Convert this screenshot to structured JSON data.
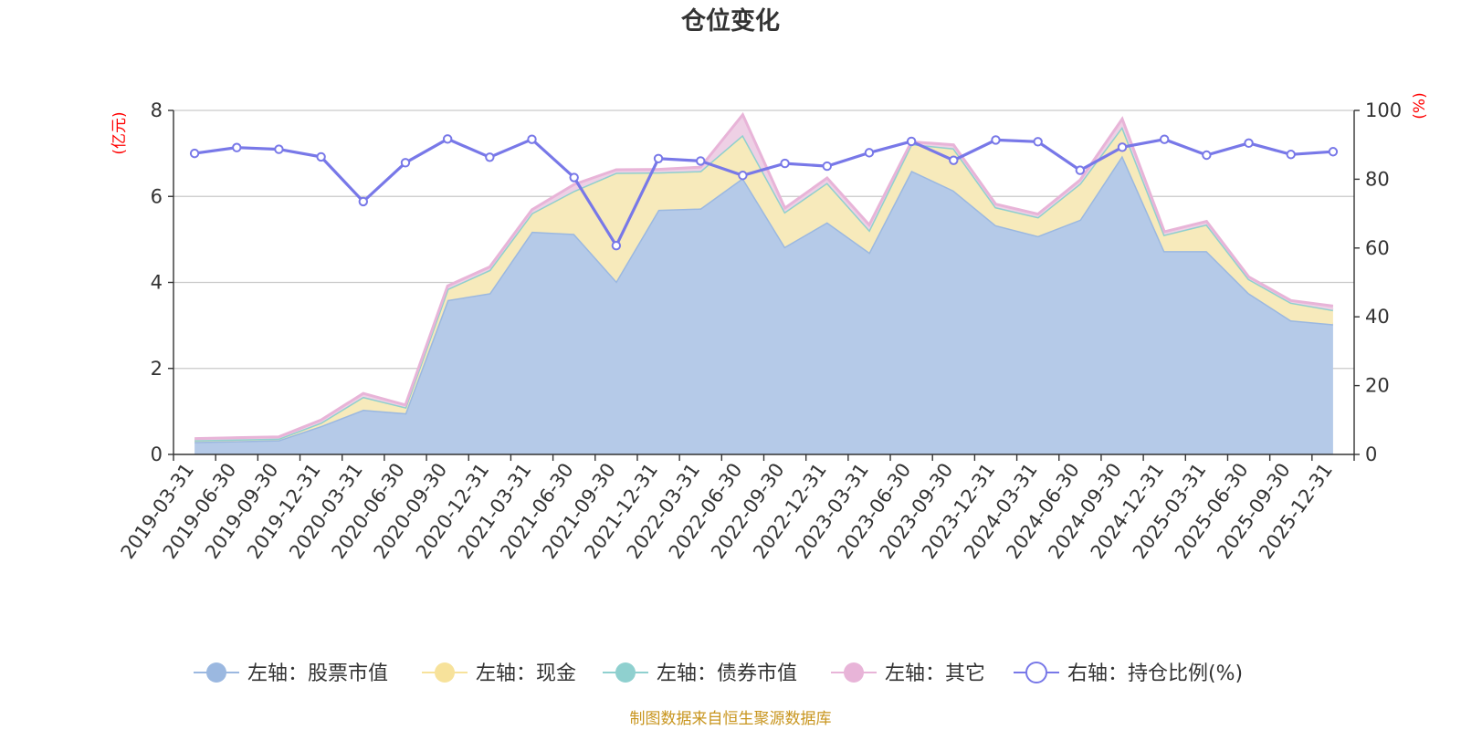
{
  "chart_data": {
    "type": "area",
    "title": "仓位变化",
    "left_unit": "(亿元)",
    "right_unit": "(%)",
    "source": "制图数据来自恒生聚源数据库",
    "ylim_left": [
      0,
      8
    ],
    "ylim_right": [
      0,
      100
    ],
    "left_ticks": [
      "0",
      "2",
      "4",
      "6",
      "8"
    ],
    "right_ticks": [
      "0",
      "20",
      "40",
      "60",
      "80",
      "100"
    ],
    "grid": true,
    "legend_position": "bottom",
    "categories": [
      "2019-03-31",
      "2019-06-30",
      "2019-09-30",
      "2019-12-31",
      "2020-03-31",
      "2020-06-30",
      "2020-09-30",
      "2020-12-31",
      "2021-03-31",
      "2021-06-30",
      "2021-09-30",
      "2021-12-31",
      "2022-03-31",
      "2022-06-30",
      "2022-09-30",
      "2022-12-31",
      "2023-03-31",
      "2023-06-30",
      "2023-09-30",
      "2023-12-31",
      "2024-03-31",
      "2024-06-30",
      "2024-09-30",
      "2024-12-31",
      "2025-03-31",
      "2025-06-30",
      "2025-09-30",
      "2025-12-31"
    ],
    "series": [
      {
        "name": "左轴：股票市值",
        "axis": "left",
        "kind": "stack",
        "color": "#9bb8e0",
        "fill": "#b5cae8",
        "values": [
          0.29,
          0.31,
          0.33,
          0.66,
          1.04,
          0.96,
          3.59,
          3.75,
          5.18,
          5.13,
          4.03,
          5.69,
          5.72,
          6.43,
          4.83,
          5.4,
          4.7,
          6.6,
          6.14,
          5.33,
          5.08,
          5.46,
          6.95,
          4.73,
          4.73,
          3.75,
          3.12,
          3.03
        ]
      },
      {
        "name": "左轴：现金",
        "axis": "left",
        "kind": "stack",
        "color": "#f7e29b",
        "fill": "#f7eabb",
        "values": [
          0.04,
          0.04,
          0.04,
          0.08,
          0.3,
          0.14,
          0.26,
          0.54,
          0.43,
          1.0,
          2.52,
          0.87,
          0.87,
          1.0,
          0.81,
          0.92,
          0.52,
          0.62,
          0.98,
          0.42,
          0.44,
          0.84,
          0.67,
          0.38,
          0.62,
          0.33,
          0.41,
          0.33
        ]
      },
      {
        "name": "左轴：债券市值",
        "axis": "left",
        "kind": "stack",
        "color": "#8fd0cf",
        "fill": "#b7e2e0",
        "values": [
          0,
          0,
          0,
          0,
          0,
          0,
          0,
          0,
          0,
          0,
          0,
          0,
          0,
          0,
          0,
          0,
          0,
          0,
          0,
          0,
          0,
          0,
          0,
          0,
          0,
          0,
          0,
          0
        ]
      },
      {
        "name": "左轴：其它",
        "axis": "left",
        "kind": "stack",
        "color": "#e8b4d8",
        "fill": "#eed0e5",
        "values": [
          0.04,
          0.04,
          0.04,
          0.06,
          0.08,
          0.05,
          0.07,
          0.07,
          0.08,
          0.15,
          0.07,
          0.07,
          0.09,
          0.47,
          0.09,
          0.11,
          0.12,
          0.05,
          0.08,
          0.07,
          0.07,
          0.08,
          0.18,
          0.07,
          0.07,
          0.05,
          0.05,
          0.09
        ]
      },
      {
        "name": "右轴：持仓比例(%)",
        "axis": "right",
        "kind": "line",
        "color": "#7878e8",
        "values": [
          87.5,
          89.2,
          88.7,
          86.5,
          73.5,
          84.8,
          91.7,
          86.4,
          91.6,
          80.5,
          60.7,
          86.0,
          85.3,
          81.1,
          84.6,
          83.8,
          87.7,
          91.0,
          85.5,
          91.4,
          90.9,
          82.6,
          89.3,
          91.6,
          87.0,
          90.5,
          87.2,
          88.0
        ]
      }
    ]
  }
}
